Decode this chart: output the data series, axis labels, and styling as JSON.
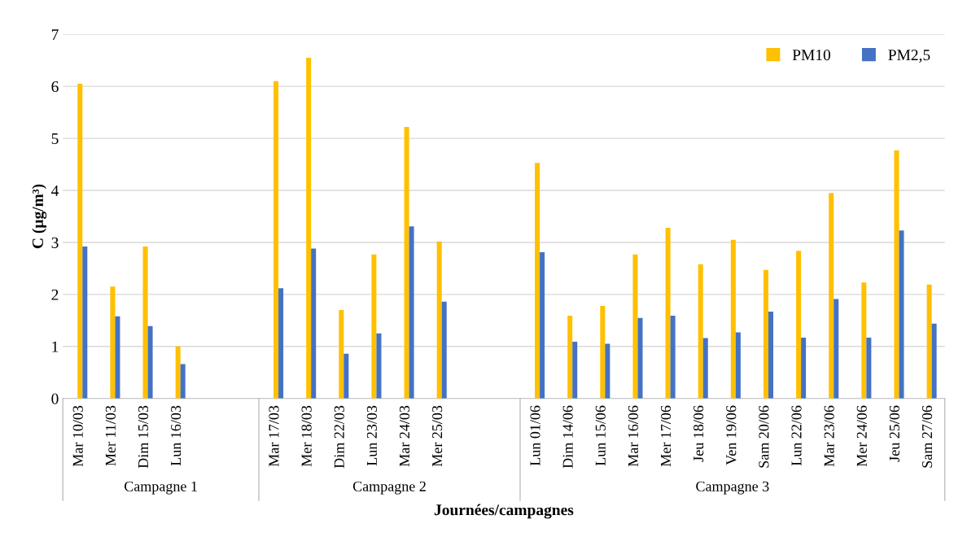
{
  "chart_data": {
    "type": "bar",
    "xlabel": "Journées/campagnes",
    "ylabel": "C (µg/m³)",
    "categories": [
      "Mar 10/03",
      "Mer 11/03",
      "Dim 15/03",
      "Lun 16/03",
      null,
      null,
      "Mar 17/03",
      "Mer 18/03",
      "Dim 22/03",
      "Lun 23/03",
      "Mar 24/03",
      "Mer 25/03",
      null,
      null,
      "Lun 01/06",
      "Dim 14/06",
      "Lun 15/06",
      "Mar 16/06",
      "Mer 17/06",
      "Jeu 18/06",
      "Ven 19/06",
      "Sam 20/06",
      "Lun 22/06",
      "Mar 23/06",
      "Mer 24/06",
      "Jeu 25/06",
      "Sam 27/06"
    ],
    "annotations": [
      "Campagne 1",
      "Campagne 2",
      "Campagne 3"
    ],
    "series": [
      {
        "name": "PM10",
        "color": "#ffc000",
        "values": [
          6.05,
          2.15,
          2.92,
          1.0,
          null,
          null,
          6.1,
          6.55,
          1.7,
          2.77,
          5.22,
          3.02,
          null,
          null,
          4.53,
          1.59,
          1.78,
          2.77,
          3.28,
          2.58,
          3.05,
          2.47,
          2.84,
          3.95,
          2.23,
          4.77,
          2.19
        ]
      },
      {
        "name": "PM2,5",
        "color": "#4472c4",
        "values": [
          2.92,
          1.58,
          1.39,
          0.66,
          null,
          null,
          2.12,
          2.88,
          0.86,
          1.25,
          3.31,
          1.86,
          null,
          null,
          2.81,
          1.09,
          1.05,
          1.55,
          1.59,
          1.16,
          1.27,
          1.67,
          1.17,
          1.91,
          1.17,
          3.23,
          1.44
        ]
      }
    ],
    "ylim": [
      0,
      7
    ],
    "yticks": [
      0,
      1,
      2,
      3,
      4,
      5,
      6,
      7
    ],
    "grid": "y",
    "legend": "top right"
  }
}
